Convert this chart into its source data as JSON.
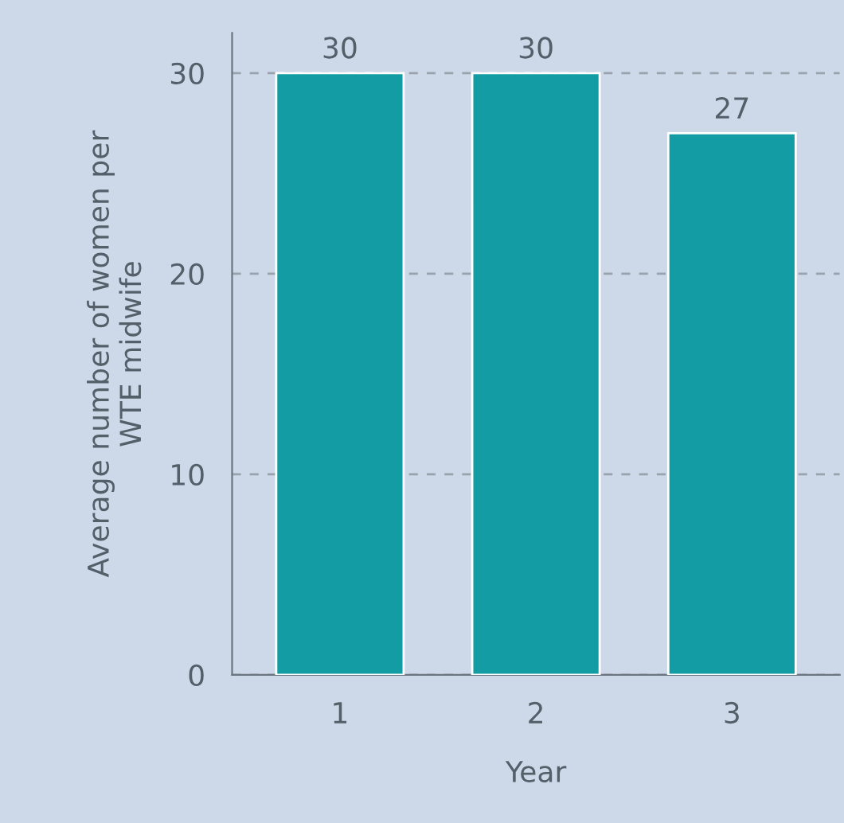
{
  "chart_data": {
    "type": "bar",
    "xlabel": "Year",
    "ylabel": "Average number of women per\nWTE midwife",
    "categories": [
      "1",
      "2",
      "3"
    ],
    "values": [
      30,
      30,
      27
    ],
    "color": "#139ca3",
    "ylim": [
      0,
      32
    ],
    "yticks": [
      0,
      10,
      20,
      30
    ],
    "grid": "y",
    "data_labels": true
  }
}
